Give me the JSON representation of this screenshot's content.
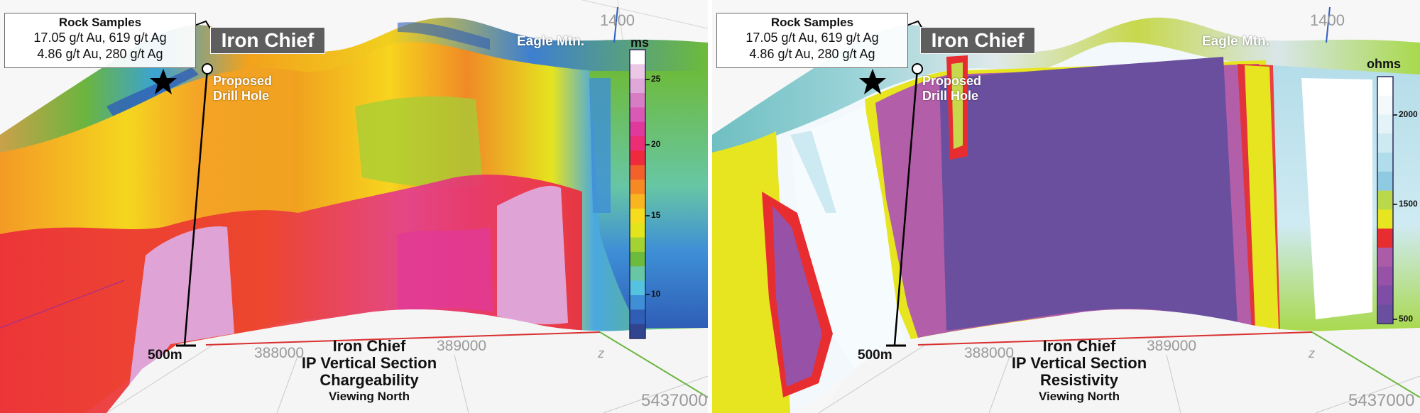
{
  "panels": [
    {
      "id": "chargeability",
      "rock_samples": {
        "title": "Rock Samples",
        "line1": "17.05 g/t Au, 619 g/t Ag",
        "line2": "4.86 g/t Au, 280 g/t Ag"
      },
      "prospect_name": "Iron Chief",
      "drill_label": [
        "Proposed",
        "Drill Hole"
      ],
      "peak_label": "Eagle Mtn.",
      "depth_label": "500m",
      "coords": {
        "elev": "1400",
        "east1": "388000",
        "east2": "389000",
        "north": "5437000",
        "axis": "z"
      },
      "section_title": [
        "Iron Chief",
        "IP Vertical Section",
        "Chargeability",
        "Viewing North"
      ],
      "legend": {
        "unit": "ms",
        "ticks": [
          "25",
          "20",
          "15",
          "10"
        ],
        "colors": [
          "#ffffff",
          "#ecc8e6",
          "#e0a8d8",
          "#d77dc4",
          "#d85ab5",
          "#e0399c",
          "#ec2c74",
          "#ee2a3c",
          "#f2612a",
          "#f58a23",
          "#f9b520",
          "#f6dc1c",
          "#e2e51c",
          "#a3d233",
          "#6dbb3c",
          "#67c6a4",
          "#55c2e0",
          "#3e8fd6",
          "#2f5eb7",
          "#30448f"
        ]
      }
    },
    {
      "id": "resistivity",
      "rock_samples": {
        "title": "Rock Samples",
        "line1": "17.05 g/t Au, 619 g/t Ag",
        "line2": "4.86 g/t Au, 280 g/t Ag"
      },
      "prospect_name": "Iron Chief",
      "drill_label": [
        "Proposed",
        "Drill Hole"
      ],
      "peak_label": "Eagle Mtn.",
      "depth_label": "500m",
      "coords": {
        "elev": "1400",
        "east1": "388000",
        "east2": "389000",
        "north": "5437000",
        "axis": "z"
      },
      "section_title": [
        "Iron Chief",
        "IP Vertical Section",
        "Resistivity",
        "Viewing North"
      ],
      "legend": {
        "unit": "ohms",
        "ticks": [
          "2000",
          "1500",
          "500"
        ],
        "colors": [
          "#ffffff",
          "#f4f9fb",
          "#e3f3f8",
          "#cdeaf3",
          "#b0dcec",
          "#8ecbe2",
          "#b9d84a",
          "#e6e51f",
          "#e72d2f",
          "#ac5ca7",
          "#9751a7",
          "#7f4da6",
          "#6b4f9f"
        ]
      }
    }
  ]
}
